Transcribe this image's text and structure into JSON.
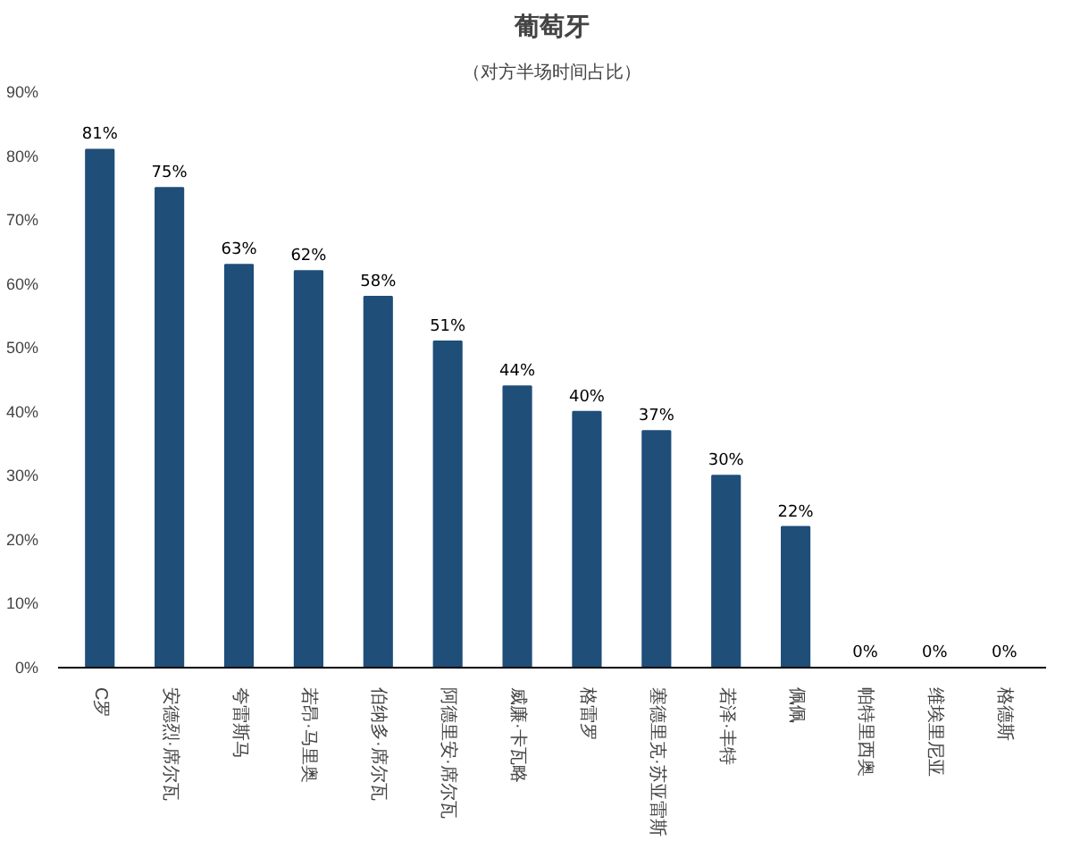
{
  "chart_data": {
    "type": "bar",
    "title": "葡萄牙",
    "subtitle": "（对方半场时间占比）",
    "categories": [
      "C罗",
      "安德烈·席尔瓦",
      "夸雷斯马",
      "若昂·马里奥",
      "伯纳多·席尔瓦",
      "阿德里安·席尔瓦",
      "威廉·卡瓦略",
      "格雷罗",
      "塞德里克·苏亚雷斯",
      "若泽·丰特",
      "佩佩",
      "帕特里西奥",
      "维埃里尼亚",
      "格德斯"
    ],
    "values": [
      81,
      75,
      63,
      62,
      58,
      51,
      44,
      40,
      37,
      30,
      22,
      0,
      0,
      0
    ],
    "color": "#1f4e79",
    "ylim": [
      0,
      90
    ],
    "yticks": [
      {
        "value": 0,
        "label": "0%"
      },
      {
        "value": 10,
        "label": "10%"
      },
      {
        "value": 20,
        "label": "20%"
      },
      {
        "value": 30,
        "label": "30%"
      },
      {
        "value": 40,
        "label": "40%"
      },
      {
        "value": 50,
        "label": "50%"
      },
      {
        "value": 60,
        "label": "60%"
      },
      {
        "value": 70,
        "label": "70%"
      },
      {
        "value": 80,
        "label": "80%"
      },
      {
        "value": 90,
        "label": "90%"
      }
    ],
    "value_labels": [
      "81%",
      "75%",
      "63%",
      "62%",
      "58%",
      "51%",
      "44%",
      "40%",
      "37%",
      "30%",
      "22%",
      "0%",
      "0%",
      "0%"
    ],
    "grid": false
  }
}
